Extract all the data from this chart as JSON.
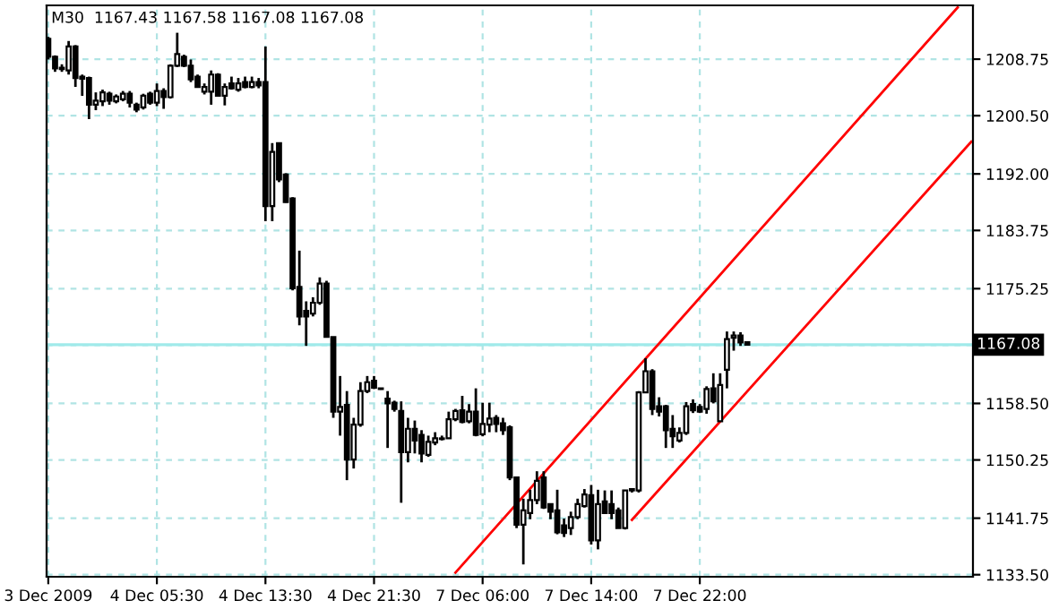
{
  "chart_data": {
    "type": "candlestick",
    "title": "M30  1167.43 1167.58 1167.08 1167.08",
    "categories": [
      "3 Dec 2009",
      null,
      null,
      null,
      null,
      null,
      null,
      null,
      null,
      null,
      null,
      null,
      null,
      null,
      null,
      null,
      "4 Dec 05:30",
      null,
      null,
      null,
      null,
      null,
      null,
      null,
      null,
      null,
      null,
      null,
      null,
      null,
      null,
      null,
      "4 Dec 13:30",
      null,
      null,
      null,
      null,
      null,
      null,
      null,
      null,
      null,
      null,
      null,
      null,
      null,
      null,
      null,
      "4 Dec 21:30",
      null,
      null,
      null,
      null,
      null,
      null,
      null,
      null,
      null,
      null,
      null,
      null,
      null,
      null,
      null,
      "7 Dec 06:00",
      null,
      null,
      null,
      null,
      null,
      null,
      null,
      null,
      null,
      null,
      null,
      null,
      null,
      null,
      null,
      "7 Dec 14:00",
      null,
      null,
      null,
      null,
      null,
      null,
      null,
      null,
      null,
      null,
      null,
      null,
      null,
      null,
      null,
      "7 Dec 22:00",
      null,
      null,
      null,
      null,
      null,
      null,
      null,
      null,
      null,
      null,
      null,
      null,
      null,
      null,
      null,
      null,
      null,
      null,
      null,
      null,
      null,
      null,
      null,
      null,
      null,
      null,
      null,
      null,
      null,
      null,
      null,
      null,
      null,
      null,
      null,
      null,
      null,
      null,
      null,
      null
    ],
    "ohlc": [
      [
        1211.7,
        1212.0,
        1208.7,
        1209.1
      ],
      [
        1209.1,
        1209.3,
        1206.9,
        1207.4
      ],
      [
        1207.5,
        1208.0,
        1206.9,
        1207.3
      ],
      [
        1207.1,
        1211.4,
        1206.5,
        1210.6
      ],
      [
        1210.6,
        1210.8,
        1204.7,
        1206.0
      ],
      [
        1206.2,
        1206.5,
        1203.4,
        1205.9
      ],
      [
        1206.0,
        1206.2,
        1200.0,
        1202.1
      ],
      [
        1202.1,
        1203.9,
        1201.3,
        1202.7
      ],
      [
        1202.6,
        1204.3,
        1201.9,
        1203.9
      ],
      [
        1203.7,
        1204.0,
        1202.1,
        1202.7
      ],
      [
        1202.6,
        1203.6,
        1202.3,
        1203.3
      ],
      [
        1202.9,
        1204.1,
        1202.6,
        1203.7
      ],
      [
        1203.7,
        1204.1,
        1201.7,
        1202.4
      ],
      [
        1202.1,
        1202.4,
        1201.0,
        1201.4
      ],
      [
        1201.7,
        1203.7,
        1201.4,
        1203.4
      ],
      [
        1203.7,
        1204.0,
        1202.1,
        1202.4
      ],
      [
        1202.4,
        1205.2,
        1201.9,
        1204.1
      ],
      [
        1204.1,
        1204.5,
        1201.5,
        1203.2
      ],
      [
        1203.2,
        1208.0,
        1203.0,
        1207.8
      ],
      [
        1207.8,
        1212.6,
        1207.6,
        1209.5
      ],
      [
        1209.1,
        1209.4,
        1207.6,
        1207.8
      ],
      [
        1207.8,
        1208.7,
        1205.4,
        1205.8
      ],
      [
        1206.2,
        1206.5,
        1204.6,
        1204.7
      ],
      [
        1204.0,
        1205.2,
        1203.6,
        1204.7
      ],
      [
        1204.0,
        1207.1,
        1202.1,
        1206.5
      ],
      [
        1206.5,
        1206.7,
        1203.3,
        1203.4
      ],
      [
        1203.4,
        1205.2,
        1202.0,
        1204.7
      ],
      [
        1205.2,
        1206.2,
        1204.3,
        1204.5
      ],
      [
        1204.3,
        1206.0,
        1204.0,
        1205.2
      ],
      [
        1205.4,
        1206.2,
        1204.5,
        1204.7
      ],
      [
        1204.7,
        1206.2,
        1204.5,
        1205.4
      ],
      [
        1205.4,
        1206.0,
        1204.5,
        1204.9
      ],
      [
        1205.4,
        1210.6,
        1185.1,
        1187.3
      ],
      [
        1187.3,
        1196.5,
        1185.1,
        1195.2
      ],
      [
        1196.5,
        1196.6,
        1190.8,
        1191.2
      ],
      [
        1191.9,
        1192.1,
        1187.8,
        1187.9
      ],
      [
        1188.4,
        1188.6,
        1175.0,
        1175.3
      ],
      [
        1175.5,
        1180.8,
        1169.9,
        1171.2
      ],
      [
        1172.0,
        1173.4,
        1166.9,
        1171.2
      ],
      [
        1171.6,
        1174.0,
        1171.2,
        1173.2
      ],
      [
        1173.2,
        1176.9,
        1172.9,
        1176.0
      ],
      [
        1176.0,
        1176.4,
        1168.2,
        1168.2
      ],
      [
        1168.2,
        1168.2,
        1156.4,
        1157.3
      ],
      [
        1157.3,
        1162.5,
        1153.8,
        1158.0
      ],
      [
        1158.3,
        1160.3,
        1147.3,
        1150.3
      ],
      [
        1150.3,
        1156.4,
        1149.0,
        1155.4
      ],
      [
        1155.4,
        1161.6,
        1155.1,
        1160.3
      ],
      [
        1160.3,
        1162.5,
        1160.0,
        1161.6
      ],
      [
        1161.8,
        1162.5,
        1160.6,
        1160.8
      ],
      [
        1160.7,
        1160.7,
        1160.5,
        1160.6
      ],
      [
        1159.2,
        1160.3,
        1152.0,
        1158.5
      ],
      [
        1158.6,
        1158.9,
        1157.3,
        1157.7
      ],
      [
        1157.4,
        1158.8,
        1144.0,
        1151.4
      ],
      [
        1151.4,
        1156.4,
        1149.9,
        1154.8
      ],
      [
        1154.8,
        1156.0,
        1151.2,
        1153.1
      ],
      [
        1153.9,
        1154.6,
        1149.9,
        1151.2
      ],
      [
        1151.0,
        1153.8,
        1150.7,
        1152.9
      ],
      [
        1152.8,
        1154.3,
        1152.4,
        1153.4
      ],
      [
        1153.4,
        1153.8,
        1153.1,
        1153.3
      ],
      [
        1153.4,
        1157.3,
        1153.4,
        1156.2
      ],
      [
        1156.2,
        1157.7,
        1155.9,
        1157.4
      ],
      [
        1157.5,
        1159.6,
        1155.6,
        1155.8
      ],
      [
        1155.9,
        1158.4,
        1155.6,
        1157.3
      ],
      [
        1157.3,
        1160.7,
        1153.7,
        1153.9
      ],
      [
        1154.0,
        1158.6,
        1153.7,
        1155.5
      ],
      [
        1155.4,
        1158.6,
        1154.3,
        1156.3
      ],
      [
        1156.4,
        1156.8,
        1154.3,
        1155.5
      ],
      [
        1155.6,
        1156.4,
        1153.9,
        1154.6
      ],
      [
        1155.0,
        1155.3,
        1147.3,
        1147.7
      ],
      [
        1147.7,
        1147.7,
        1140.3,
        1140.8
      ],
      [
        1140.8,
        1144.6,
        1135.0,
        1142.9
      ],
      [
        1142.5,
        1145.9,
        1141.6,
        1144.4
      ],
      [
        1144.4,
        1148.6,
        1143.8,
        1147.2
      ],
      [
        1147.7,
        1148.6,
        1143.1,
        1143.3
      ],
      [
        1143.8,
        1143.8,
        1141.6,
        1142.7
      ],
      [
        1142.9,
        1145.9,
        1139.4,
        1139.7
      ],
      [
        1140.7,
        1141.7,
        1139.0,
        1139.6
      ],
      [
        1140.3,
        1142.7,
        1139.3,
        1141.9
      ],
      [
        1141.9,
        1144.6,
        1141.6,
        1143.8
      ],
      [
        1143.5,
        1146.0,
        1143.3,
        1145.2
      ],
      [
        1145.1,
        1146.6,
        1137.9,
        1138.5
      ],
      [
        1138.5,
        1145.9,
        1137.2,
        1143.8
      ],
      [
        1144.2,
        1145.8,
        1142.4,
        1142.5
      ],
      [
        1143.8,
        1145.8,
        1141.6,
        1142.5
      ],
      [
        1142.9,
        1143.3,
        1140.3,
        1140.3
      ],
      [
        1140.3,
        1145.8,
        1140.1,
        1145.8
      ],
      [
        1145.8,
        1146.1,
        1145.5,
        1146.0
      ],
      [
        1145.8,
        1160.3,
        1145.5,
        1160.1
      ],
      [
        1160.1,
        1165.1,
        1160.1,
        1163.2
      ],
      [
        1163.2,
        1163.5,
        1156.8,
        1157.7
      ],
      [
        1158.1,
        1159.4,
        1156.6,
        1157.3
      ],
      [
        1158.1,
        1158.3,
        1152.0,
        1154.6
      ],
      [
        1154.8,
        1156.8,
        1152.0,
        1153.7
      ],
      [
        1153.1,
        1155.0,
        1152.8,
        1154.2
      ],
      [
        1154.2,
        1158.7,
        1153.9,
        1158.1
      ],
      [
        1158.4,
        1159.1,
        1157.1,
        1157.5
      ],
      [
        1158.0,
        1158.4,
        1157.1,
        1157.3
      ],
      [
        1157.7,
        1161.0,
        1157.0,
        1160.6
      ],
      [
        1160.7,
        1162.9,
        1158.5,
        1158.8
      ],
      [
        1155.9,
        1162.9,
        1155.9,
        1161.2
      ],
      [
        1163.4,
        1169.0,
        1160.7,
        1167.9
      ],
      [
        1168.1,
        1169.0,
        1166.2,
        1168.4
      ],
      [
        1168.4,
        1168.9,
        1166.9,
        1167.4
      ],
      [
        1167.43,
        1167.58,
        1167.08,
        1167.08
      ],
      null,
      null,
      null,
      null,
      null,
      null,
      null,
      null,
      null,
      null,
      null,
      null,
      null,
      null,
      null,
      null,
      null,
      null,
      null,
      null,
      null,
      null,
      null,
      null,
      null,
      null,
      null,
      null,
      null,
      null,
      null,
      null,
      null
    ],
    "series": [
      {
        "type": "line",
        "color": "#ff0000",
        "values": [
          null,
          null,
          null,
          null,
          null,
          null,
          null,
          null,
          null,
          null,
          null,
          null,
          null,
          null,
          null,
          null,
          null,
          null,
          null,
          null,
          null,
          null,
          null,
          null,
          null,
          null,
          null,
          null,
          null,
          null,
          null,
          null,
          null,
          null,
          null,
          null,
          null,
          null,
          null,
          null,
          null,
          null,
          null,
          null,
          null,
          null,
          null,
          null,
          null,
          null,
          null,
          null,
          null,
          null,
          null,
          null,
          null,
          null,
          null,
          null,
          1133.8,
          null,
          null,
          null,
          null,
          null,
          null,
          null,
          null,
          null,
          null,
          null,
          null,
          null,
          null,
          null,
          null,
          null,
          null,
          null,
          null,
          null,
          null,
          null,
          null,
          null,
          null,
          null,
          null,
          null,
          null,
          null,
          null,
          null,
          null,
          null,
          null,
          null,
          null,
          null,
          null,
          null,
          null,
          null,
          null,
          null,
          null,
          null,
          null,
          null,
          null,
          null,
          null,
          null,
          null,
          null,
          null,
          null,
          null,
          null,
          null,
          null,
          null,
          null,
          null,
          null,
          null,
          null,
          null,
          null,
          null,
          null,
          null,
          null,
          1216.3,
          null,
          null
        ]
      },
      {
        "type": "line",
        "color": "#ff0000",
        "values": [
          null,
          null,
          null,
          null,
          null,
          null,
          null,
          null,
          null,
          null,
          null,
          null,
          null,
          null,
          null,
          null,
          null,
          null,
          null,
          null,
          null,
          null,
          null,
          null,
          null,
          null,
          null,
          null,
          null,
          null,
          null,
          null,
          null,
          null,
          null,
          null,
          null,
          null,
          null,
          null,
          null,
          null,
          null,
          null,
          null,
          null,
          null,
          null,
          null,
          null,
          null,
          null,
          null,
          null,
          null,
          null,
          null,
          null,
          null,
          null,
          null,
          null,
          null,
          null,
          null,
          null,
          null,
          null,
          null,
          null,
          null,
          null,
          null,
          null,
          null,
          null,
          null,
          null,
          null,
          null,
          null,
          null,
          null,
          null,
          null,
          null,
          1141.5,
          null,
          null,
          null,
          null,
          null,
          null,
          null,
          null,
          null,
          null,
          null,
          null,
          null,
          null,
          null,
          null,
          null,
          null,
          null,
          null,
          null,
          null,
          null,
          null,
          null,
          null,
          null,
          null,
          null,
          null,
          null,
          null,
          null,
          null,
          null,
          null,
          null,
          null,
          null,
          null,
          null,
          null,
          null,
          null,
          null,
          null,
          null,
          null,
          null,
          1196.7
        ]
      }
    ],
    "ylim": [
      1133.2,
      1216.6
    ],
    "yticks": [
      {
        "value": 1208.75,
        "label": "1208.75"
      },
      {
        "value": 1200.5,
        "label": "1200.50"
      },
      {
        "value": 1192,
        "label": "1192.00"
      },
      {
        "value": 1183.75,
        "label": "1183.75"
      },
      {
        "value": 1175.25,
        "label": "1175.25"
      },
      {
        "value": 1167,
        "label": null
      },
      {
        "value": 1158.5,
        "label": "1158.50"
      },
      {
        "value": 1150.25,
        "label": "1150.25"
      },
      {
        "value": 1141.75,
        "label": "1141.75"
      },
      {
        "value": 1133.5,
        "label": "1133.50"
      }
    ],
    "ref_lines": [
      {
        "axis": "y",
        "value": 1167.08,
        "label": "1167.08",
        "color": "#a0eaea"
      }
    ],
    "grid": true,
    "legend": false
  }
}
